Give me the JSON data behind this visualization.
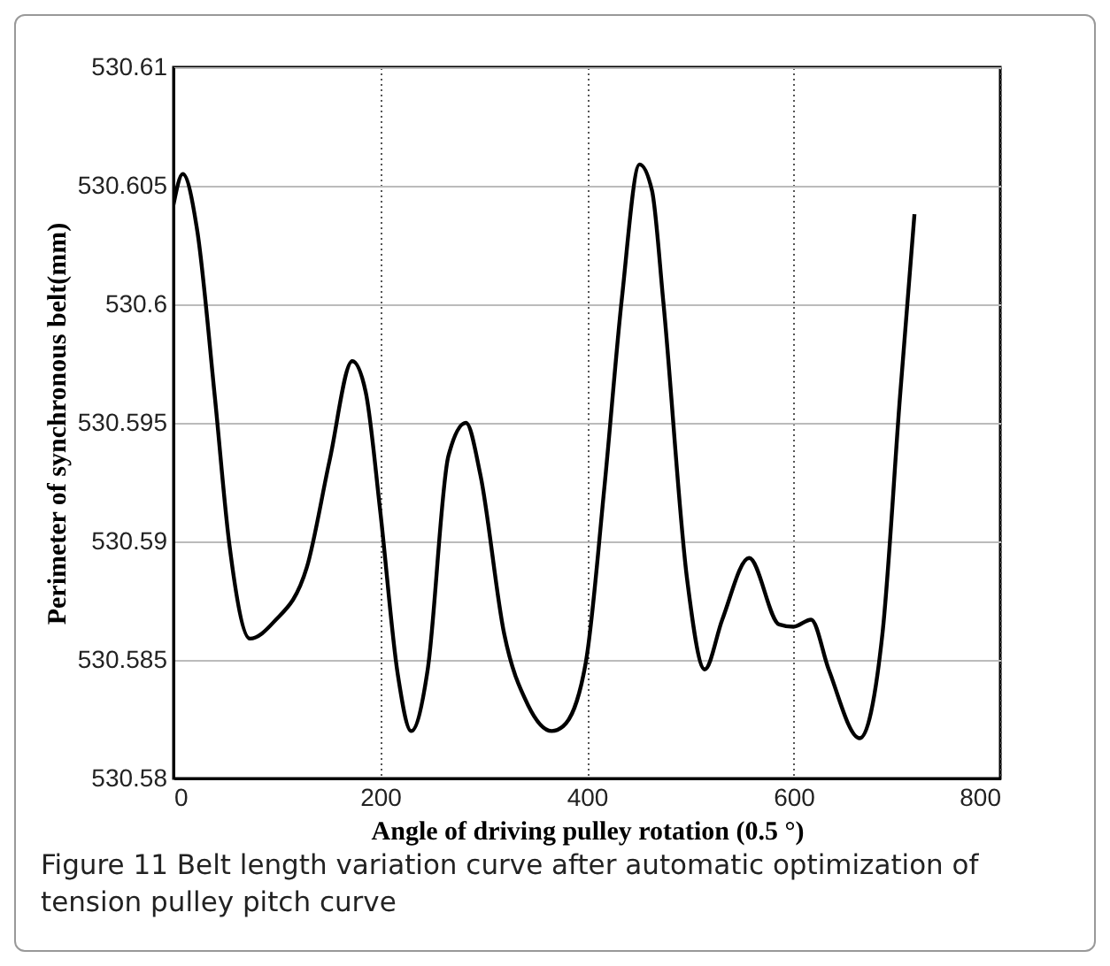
{
  "chart_data": {
    "type": "line",
    "xlabel": "Angle of driving pulley rotation (0.5 °)",
    "ylabel": "Perimeter of synchronous belt(mm)",
    "annotations": [
      "Figure 11  Belt length variation curve after automatic optimization of tension pulley pitch curve"
    ],
    "xlim": [
      0,
      800
    ],
    "xticks": [
      0,
      200,
      400,
      600,
      800
    ],
    "ylim": [
      530.58,
      530.61
    ],
    "yticks": [
      530.58,
      530.585,
      530.59,
      530.595,
      530.6,
      530.605,
      530.61
    ],
    "grid": true,
    "marker": "none",
    "line_style": "solid",
    "series": [
      {
        "color": "#000000",
        "x": [
          0,
          9,
          23,
          40,
          54,
          74,
          97,
          129,
          151,
          173,
          186,
          200,
          217,
          230,
          246,
          266,
          283,
          297,
          320,
          343,
          366,
          377,
          399,
          417,
          434,
          451,
          463,
          474,
          497,
          514,
          531,
          557,
          586,
          600,
          617,
          634,
          664,
          686,
          703,
          717
        ],
        "values": [
          530.6042,
          530.6055,
          530.6031,
          530.5961,
          530.5899,
          530.5859,
          530.5866,
          530.5889,
          530.5934,
          530.5976,
          530.5963,
          530.5913,
          530.5844,
          530.582,
          530.5846,
          530.5936,
          530.595,
          530.5928,
          530.5861,
          530.5831,
          530.582,
          530.5822,
          530.5849,
          530.5923,
          530.6003,
          530.6059,
          530.6048,
          530.6001,
          530.5884,
          530.5846,
          530.5867,
          530.5893,
          530.5865,
          530.5864,
          530.5867,
          530.5846,
          530.5817,
          530.5861,
          530.5961,
          530.6038
        ]
      }
    ]
  }
}
